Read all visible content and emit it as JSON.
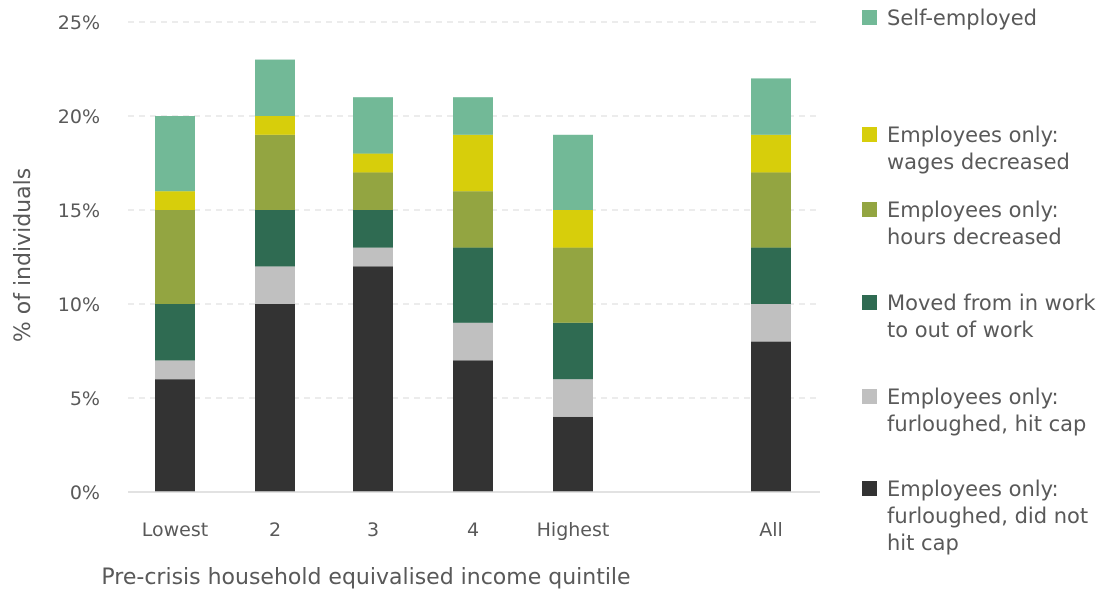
{
  "chart_data": {
    "type": "bar",
    "stacked": true,
    "categories": [
      "Lowest",
      "2",
      "3",
      "4",
      "Highest",
      "All"
    ],
    "series": [
      {
        "name": "Employees only: furloughed, did not hit cap",
        "legend_lines": [
          "Employees only:",
          "furloughed, did not",
          "hit cap"
        ],
        "color": "#333333",
        "values": [
          6,
          10,
          12,
          7,
          4,
          8
        ]
      },
      {
        "name": "Employees only: furloughed, hit cap",
        "legend_lines": [
          "Employees only:",
          "furloughed, hit cap"
        ],
        "color": "#c0c0c0",
        "values": [
          1,
          2,
          1,
          2,
          2,
          2
        ]
      },
      {
        "name": "Moved from in work to out of work",
        "legend_lines": [
          "Moved from in work",
          "to out of work"
        ],
        "color": "#2f6b52",
        "values": [
          3,
          3,
          2,
          4,
          3,
          3
        ]
      },
      {
        "name": "Employees only: hours decreased",
        "legend_lines": [
          "Employees only:",
          "hours decreased"
        ],
        "color": "#93a541",
        "values": [
          5,
          4,
          2,
          3,
          4,
          4
        ]
      },
      {
        "name": "Employees only: wages decreased",
        "legend_lines": [
          "Employees only:",
          "wages decreased"
        ],
        "color": "#d7ce0b",
        "values": [
          1,
          1,
          1,
          3,
          2,
          2
        ]
      },
      {
        "name": "Self-employed",
        "legend_lines": [
          "Self-employed"
        ],
        "color": "#72b997",
        "values": [
          4,
          3,
          3,
          2,
          4,
          3
        ]
      }
    ],
    "yticks": [
      "0%",
      "5%",
      "10%",
      "15%",
      "20%",
      "25%"
    ],
    "ytick_values": [
      0,
      5,
      10,
      15,
      20,
      25
    ],
    "ylim": [
      0,
      25
    ],
    "xlabel": "Pre-crisis household equivalised income quintile",
    "ylabel": "% of individuals",
    "title": "",
    "grid": true,
    "legend_position": "right"
  }
}
